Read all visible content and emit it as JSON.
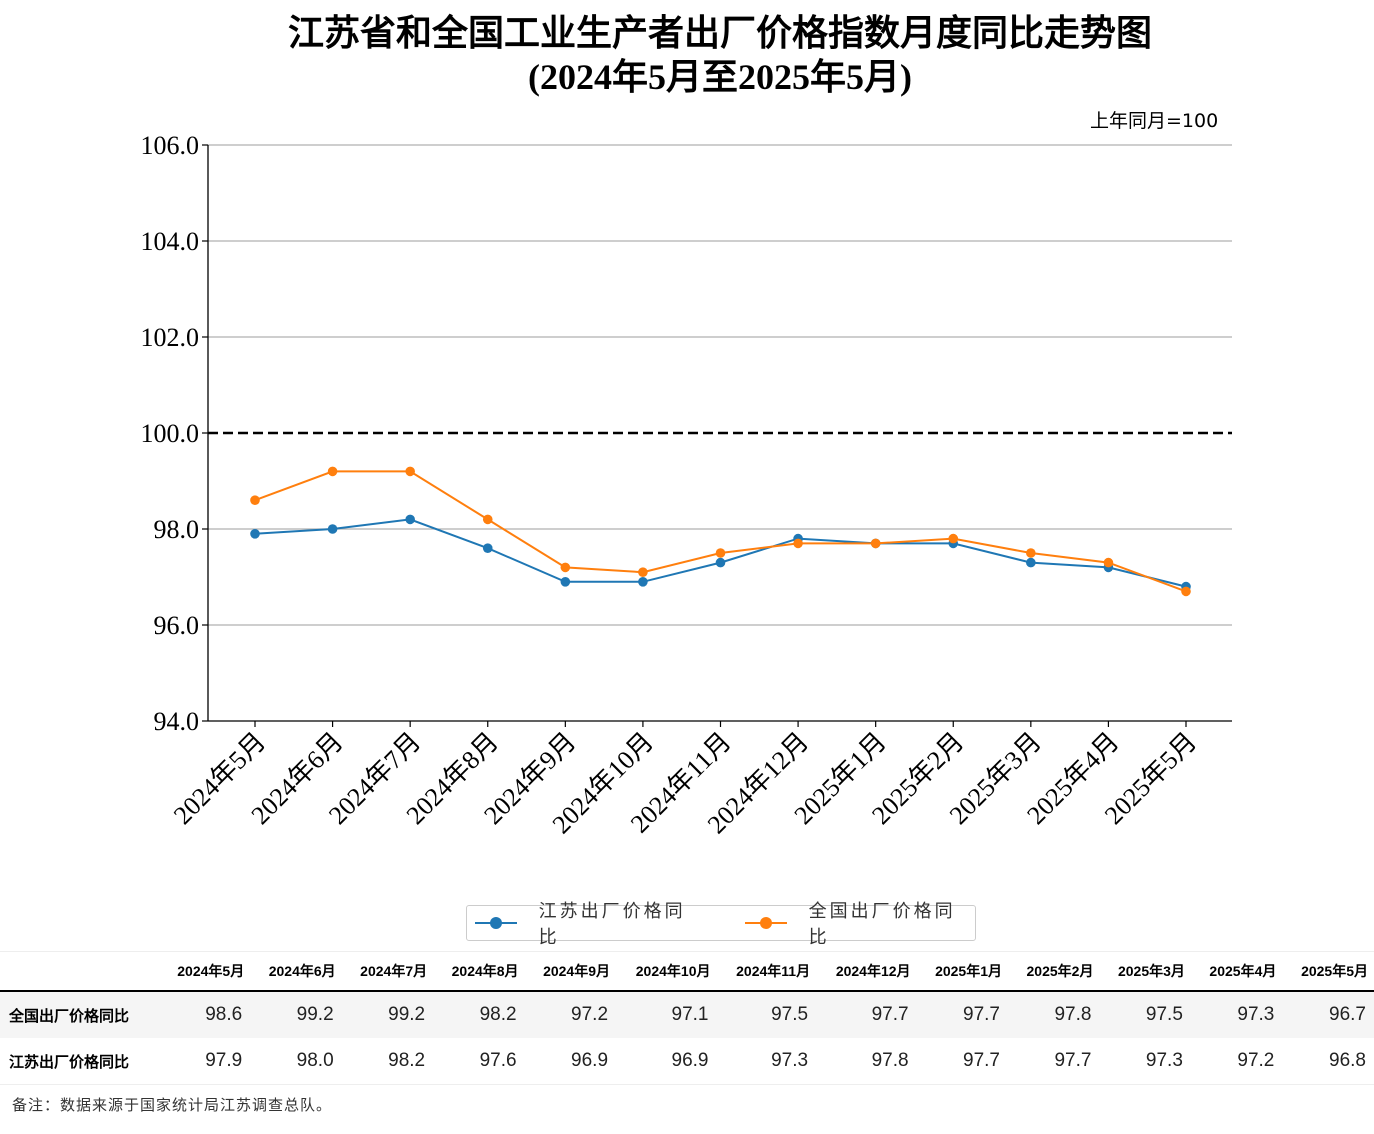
{
  "chart_data": {
    "type": "line",
    "title": "江苏省和全国工业生产者出厂价格指数月度同比走势图",
    "subtitle": "(2024年5月至2025年5月)",
    "unit_note": "上年同月=100",
    "xlabel": "",
    "ylabel": "",
    "categories": [
      "2024年5月",
      "2024年6月",
      "2024年7月",
      "2024年8月",
      "2024年9月",
      "2024年10月",
      "2024年11月",
      "2024年12月",
      "2025年1月",
      "2025年2月",
      "2025年3月",
      "2025年4月",
      "2025年5月"
    ],
    "ylim": [
      94.0,
      106.0
    ],
    "yticks": [
      "94.0",
      "96.0",
      "98.0",
      "100.0",
      "102.0",
      "104.0",
      "106.0"
    ],
    "grid": true,
    "reference_line": {
      "value": 100.0,
      "style": "dashed",
      "color": "#000000"
    },
    "legend_position": "bottom-center",
    "series": [
      {
        "name": "江苏出厂价格同比",
        "color": "#1f77b4",
        "values": [
          97.9,
          98.0,
          98.2,
          97.6,
          96.9,
          96.9,
          97.3,
          97.8,
          97.7,
          97.7,
          97.3,
          97.2,
          96.8
        ]
      },
      {
        "name": "全国出厂价格同比",
        "color": "#ff7f0e",
        "values": [
          98.6,
          99.2,
          99.2,
          98.2,
          97.2,
          97.1,
          97.5,
          97.7,
          97.7,
          97.8,
          97.5,
          97.3,
          96.7
        ]
      }
    ]
  },
  "table": {
    "columns": [
      "2024年5月",
      "2024年6月",
      "2024年7月",
      "2024年8月",
      "2024年9月",
      "2024年10月",
      "2024年11月",
      "2024年12月",
      "2025年1月",
      "2025年2月",
      "2025年3月",
      "2025年4月",
      "2025年5月"
    ],
    "rows": [
      {
        "label": "全国出厂价格同比",
        "values": [
          "98.6",
          "99.2",
          "99.2",
          "98.2",
          "97.2",
          "97.1",
          "97.5",
          "97.7",
          "97.7",
          "97.8",
          "97.5",
          "97.3",
          "96.7"
        ]
      },
      {
        "label": "江苏出厂价格同比",
        "values": [
          "97.9",
          "98.0",
          "98.2",
          "97.6",
          "96.9",
          "96.9",
          "97.3",
          "97.8",
          "97.7",
          "97.7",
          "97.3",
          "97.2",
          "96.8"
        ]
      }
    ]
  },
  "footnote": "备注：数据来源于国家统计局江苏调查总队。"
}
